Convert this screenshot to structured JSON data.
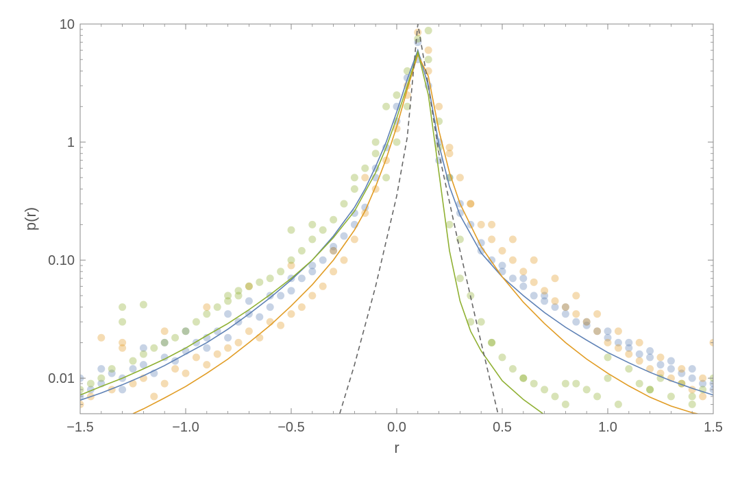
{
  "chart_data": {
    "type": "scatter",
    "title": "",
    "xlabel": "r",
    "ylabel": "p(r)",
    "xlim": [
      -1.5,
      1.5
    ],
    "ylim": [
      0.005,
      10
    ],
    "y_scale": "log",
    "grid": false,
    "legend": "none",
    "x_ticks": [
      {
        "value": -1.5,
        "label": "−1.5"
      },
      {
        "value": -1.0,
        "label": "−1.0"
      },
      {
        "value": -0.5,
        "label": "−0.5"
      },
      {
        "value": 0.0,
        "label": "0.0"
      },
      {
        "value": 0.5,
        "label": "0.5"
      },
      {
        "value": 1.0,
        "label": "1.0"
      },
      {
        "value": 1.5,
        "label": "1.5"
      }
    ],
    "y_ticks": [
      {
        "value": 0.01,
        "label": "0.01"
      },
      {
        "value": 0.1,
        "label": "0.10"
      },
      {
        "value": 1,
        "label": "1"
      },
      {
        "value": 10,
        "label": "10"
      }
    ],
    "series": [
      {
        "kind": "scatter",
        "color": "#5e81b5",
        "opacity": 0.35,
        "x": [
          -1.5,
          -1.45,
          -1.4,
          -1.35,
          -1.3,
          -1.25,
          -1.2,
          -1.15,
          -1.1,
          -1.05,
          -1.0,
          -0.95,
          -0.9,
          -0.85,
          -0.8,
          -0.75,
          -0.7,
          -0.65,
          -0.6,
          -0.55,
          -0.5,
          -0.45,
          -0.4,
          -0.35,
          -0.3,
          -0.25,
          -0.2,
          -0.15,
          -0.1,
          -0.05,
          0.0,
          0.05,
          0.1,
          0.15,
          0.2,
          0.25,
          0.3,
          0.35,
          0.4,
          0.45,
          0.5,
          0.55,
          0.6,
          0.65,
          0.7,
          0.75,
          0.8,
          0.85,
          0.9,
          0.95,
          1.0,
          1.05,
          1.1,
          1.15,
          1.2,
          1.25,
          1.3,
          1.35,
          1.4,
          1.45,
          1.5,
          -1.5,
          -1.4,
          -1.3,
          -1.2,
          -1.1,
          -1.0,
          -0.9,
          -0.8,
          -0.7,
          -0.6,
          -0.5,
          -0.4,
          -0.3,
          -0.2,
          -0.1,
          0.0,
          0.1,
          0.2,
          0.3,
          0.4,
          0.5,
          0.6,
          0.7,
          0.8,
          0.9,
          1.0,
          1.1,
          1.2,
          1.3,
          1.4,
          1.5
        ],
        "y": [
          0.007,
          0.008,
          0.009,
          0.011,
          0.01,
          0.012,
          0.013,
          0.011,
          0.015,
          0.014,
          0.017,
          0.02,
          0.018,
          0.025,
          0.022,
          0.03,
          0.035,
          0.033,
          0.04,
          0.05,
          0.055,
          0.07,
          0.08,
          0.1,
          0.12,
          0.16,
          0.2,
          0.28,
          0.5,
          0.9,
          1.5,
          3.5,
          7.0,
          3.0,
          1.0,
          0.5,
          0.3,
          0.2,
          0.14,
          0.1,
          0.08,
          0.07,
          0.06,
          0.05,
          0.045,
          0.04,
          0.035,
          0.03,
          0.028,
          0.025,
          0.022,
          0.02,
          0.018,
          0.016,
          0.015,
          0.013,
          0.012,
          0.011,
          0.01,
          0.009,
          0.008,
          0.01,
          0.012,
          0.008,
          0.018,
          0.02,
          0.025,
          0.022,
          0.035,
          0.045,
          0.05,
          0.07,
          0.09,
          0.13,
          0.25,
          0.6,
          2.0,
          5.0,
          0.7,
          0.25,
          0.12,
          0.09,
          0.07,
          0.05,
          0.04,
          0.03,
          0.025,
          0.02,
          0.017,
          0.014,
          0.012,
          0.009
        ]
      },
      {
        "kind": "scatter",
        "color": "#e19c24",
        "opacity": 0.35,
        "x": [
          -1.5,
          -1.45,
          -1.4,
          -1.35,
          -1.3,
          -1.25,
          -1.2,
          -1.15,
          -1.1,
          -1.05,
          -1.0,
          -0.95,
          -0.9,
          -0.85,
          -0.8,
          -0.75,
          -0.7,
          -0.65,
          -0.6,
          -0.55,
          -0.5,
          -0.45,
          -0.4,
          -0.35,
          -0.3,
          -0.25,
          -0.2,
          -0.15,
          -0.1,
          -0.05,
          0.0,
          0.05,
          0.1,
          0.15,
          0.2,
          0.25,
          0.3,
          0.35,
          0.4,
          0.45,
          0.5,
          0.55,
          0.6,
          0.65,
          0.7,
          0.75,
          0.8,
          0.85,
          0.9,
          0.95,
          1.0,
          1.05,
          1.1,
          1.15,
          1.2,
          1.25,
          1.3,
          1.35,
          1.4,
          1.45,
          1.5,
          -1.3,
          -1.1,
          -0.9,
          -0.7,
          -0.5,
          -0.3,
          -0.15,
          0.05,
          0.15,
          0.25,
          0.35,
          0.45,
          0.55,
          0.65,
          0.75,
          0.85,
          0.95,
          1.05,
          1.15,
          1.25,
          1.35,
          1.45
        ],
        "y": [
          0.006,
          0.007,
          0.022,
          0.008,
          0.02,
          0.009,
          0.01,
          0.007,
          0.009,
          0.012,
          0.011,
          0.015,
          0.013,
          0.016,
          0.018,
          0.02,
          0.025,
          0.022,
          0.03,
          0.028,
          0.035,
          0.04,
          0.05,
          0.06,
          0.08,
          0.1,
          0.15,
          0.25,
          0.4,
          0.7,
          1.3,
          3.0,
          8.5,
          4.0,
          2.0,
          0.9,
          0.5,
          0.3,
          0.2,
          0.15,
          0.12,
          0.1,
          0.08,
          0.065,
          0.055,
          0.045,
          0.04,
          0.035,
          0.03,
          0.025,
          0.02,
          0.018,
          0.016,
          0.014,
          0.012,
          0.011,
          0.01,
          0.009,
          0.008,
          0.007,
          0.02,
          0.018,
          0.025,
          0.04,
          0.06,
          0.09,
          0.12,
          0.5,
          2.5,
          6.0,
          0.8,
          0.3,
          0.2,
          0.15,
          0.1,
          0.07,
          0.05,
          0.035,
          0.025,
          0.02,
          0.015,
          0.012,
          0.01
        ]
      },
      {
        "kind": "scatter",
        "color": "#8fb032",
        "opacity": 0.35,
        "x": [
          -1.5,
          -1.45,
          -1.4,
          -1.35,
          -1.3,
          -1.25,
          -1.2,
          -1.15,
          -1.1,
          -1.05,
          -1.0,
          -0.95,
          -0.9,
          -0.85,
          -0.8,
          -0.75,
          -0.7,
          -0.65,
          -0.6,
          -0.55,
          -0.5,
          -0.45,
          -0.4,
          -0.35,
          -0.3,
          -0.25,
          -0.2,
          -0.15,
          -0.1,
          -0.05,
          0.0,
          0.05,
          0.1,
          0.15,
          0.2,
          0.25,
          0.3,
          0.35,
          0.4,
          0.45,
          0.5,
          0.55,
          0.6,
          0.65,
          0.7,
          0.75,
          0.8,
          0.85,
          0.9,
          0.95,
          1.0,
          1.05,
          1.1,
          1.15,
          1.2,
          1.25,
          1.3,
          1.35,
          1.4,
          1.45,
          1.5,
          -1.3,
          -1.2,
          -0.8,
          -0.75,
          -0.5,
          -0.4,
          -0.2,
          -0.1,
          -0.05,
          0.0,
          0.05,
          0.15,
          0.2,
          0.25,
          0.3,
          0.35,
          0.45,
          0.6,
          0.8,
          1.0,
          1.2,
          1.4
        ],
        "y": [
          0.008,
          0.009,
          0.01,
          0.012,
          0.03,
          0.014,
          0.016,
          0.018,
          0.02,
          0.022,
          0.025,
          0.03,
          0.035,
          0.04,
          0.045,
          0.05,
          0.06,
          0.065,
          0.07,
          0.08,
          0.1,
          0.12,
          0.15,
          0.18,
          0.22,
          0.3,
          0.4,
          0.6,
          1.0,
          2.0,
          2.5,
          4.0,
          7.5,
          5.0,
          1.5,
          0.5,
          0.15,
          0.05,
          0.03,
          0.02,
          0.015,
          0.012,
          0.01,
          0.009,
          0.008,
          0.007,
          0.006,
          0.009,
          0.008,
          0.007,
          0.015,
          0.006,
          0.012,
          0.009,
          0.008,
          0.01,
          0.007,
          0.009,
          0.006,
          0.008,
          0.01,
          0.04,
          0.042,
          0.05,
          0.055,
          0.18,
          0.2,
          0.5,
          0.8,
          0.5,
          1.0,
          2.0,
          8.8,
          0.9,
          0.2,
          0.07,
          0.03,
          0.02,
          0.01,
          0.009,
          0.01,
          0.008,
          0.007
        ]
      },
      {
        "kind": "line",
        "color": "#5e81b5",
        "dashed": false,
        "x": [
          -1.5,
          -1.4,
          -1.3,
          -1.2,
          -1.1,
          -1.0,
          -0.9,
          -0.8,
          -0.7,
          -0.6,
          -0.5,
          -0.4,
          -0.3,
          -0.2,
          -0.15,
          -0.1,
          -0.05,
          0.0,
          0.05,
          0.1,
          0.15,
          0.2,
          0.25,
          0.3,
          0.4,
          0.5,
          0.6,
          0.7,
          0.8,
          0.9,
          1.0,
          1.1,
          1.2,
          1.3,
          1.4,
          1.5
        ],
        "y": [
          0.0065,
          0.0075,
          0.0088,
          0.0105,
          0.0128,
          0.016,
          0.02,
          0.026,
          0.035,
          0.048,
          0.068,
          0.1,
          0.16,
          0.28,
          0.4,
          0.62,
          1.0,
          1.8,
          3.4,
          6.0,
          3.0,
          0.95,
          0.42,
          0.24,
          0.115,
          0.072,
          0.05,
          0.036,
          0.027,
          0.021,
          0.0165,
          0.0135,
          0.0112,
          0.0095,
          0.0082,
          0.0072
        ]
      },
      {
        "kind": "line",
        "color": "#e19c24",
        "dashed": false,
        "x": [
          -1.25,
          -1.2,
          -1.1,
          -1.0,
          -0.9,
          -0.8,
          -0.7,
          -0.6,
          -0.5,
          -0.4,
          -0.3,
          -0.2,
          -0.15,
          -0.1,
          -0.05,
          0.0,
          0.05,
          0.1,
          0.15,
          0.2,
          0.25,
          0.3,
          0.4,
          0.5,
          0.6,
          0.7,
          0.8,
          0.9,
          1.0,
          1.1,
          1.2,
          1.3,
          1.4,
          1.5
        ],
        "y": [
          0.005,
          0.0055,
          0.0068,
          0.0085,
          0.011,
          0.0145,
          0.02,
          0.028,
          0.041,
          0.062,
          0.1,
          0.18,
          0.26,
          0.42,
          0.72,
          1.35,
          2.8,
          5.5,
          3.6,
          1.25,
          0.55,
          0.3,
          0.13,
          0.072,
          0.044,
          0.029,
          0.02,
          0.0145,
          0.011,
          0.0086,
          0.0069,
          0.0058,
          0.0051,
          0.0047
        ]
      },
      {
        "kind": "line",
        "color": "#8fb032",
        "dashed": false,
        "x": [
          -1.5,
          -1.4,
          -1.3,
          -1.2,
          -1.1,
          -1.0,
          -0.9,
          -0.8,
          -0.7,
          -0.6,
          -0.5,
          -0.4,
          -0.3,
          -0.2,
          -0.1,
          -0.05,
          0.0,
          0.05,
          0.1,
          0.15,
          0.2,
          0.25,
          0.3,
          0.35,
          0.4,
          0.5,
          0.6,
          0.7
        ],
        "y": [
          0.0072,
          0.0085,
          0.01,
          0.012,
          0.0145,
          0.018,
          0.023,
          0.029,
          0.038,
          0.051,
          0.07,
          0.1,
          0.155,
          0.26,
          0.55,
          0.9,
          1.6,
          3.0,
          5.8,
          2.5,
          0.55,
          0.12,
          0.045,
          0.025,
          0.017,
          0.0095,
          0.0066,
          0.0049
        ]
      },
      {
        "kind": "line",
        "color": "#666666",
        "dashed": true,
        "x": [
          -0.27,
          -0.2,
          -0.1,
          0.0,
          0.05,
          0.1,
          0.15,
          0.2,
          0.3,
          0.4,
          0.48
        ],
        "y": [
          0.005,
          0.013,
          0.06,
          0.35,
          1.1,
          10.0,
          3.0,
          0.8,
          0.12,
          0.02,
          0.005
        ]
      }
    ]
  }
}
